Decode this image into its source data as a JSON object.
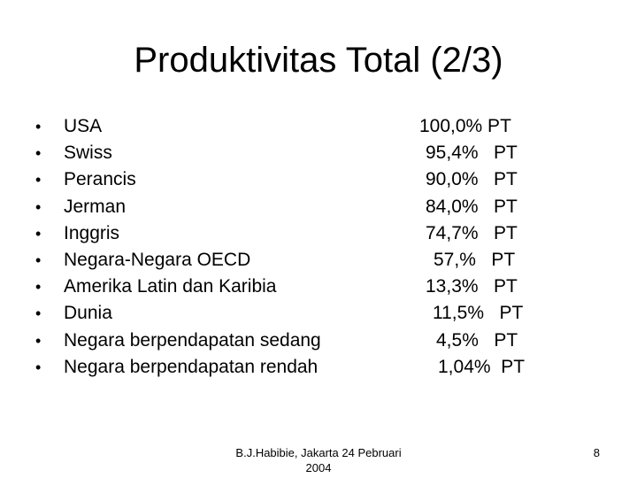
{
  "slide": {
    "title": "Produktivitas Total (2/3)",
    "bullet_char": "•",
    "items": [
      {
        "label": "USA",
        "value": "100,0% PT"
      },
      {
        "label": "Swiss",
        "value": "95,4%   PT"
      },
      {
        "label": "Perancis",
        "value": "90,0%   PT"
      },
      {
        "label": "Jerman",
        "value": "84,0%   PT"
      },
      {
        "label": "Inggris",
        "value": "74,7%   PT"
      },
      {
        "label": "Negara-Negara OECD",
        "value": "57,%   PT"
      },
      {
        "label": "Amerika Latin dan Karibia",
        "value": "13,3%   PT"
      },
      {
        "label": "Dunia",
        "value": "11,5%   PT"
      },
      {
        "label": "Negara berpendapatan sedang",
        "value": "4,5%   PT"
      },
      {
        "label": "Negara berpendapatan rendah",
        "value": "1,04%  PT"
      }
    ],
    "footer_left_line1": "B.J.Habibie, Jakarta 24 Pebruari",
    "footer_left_line2": "2004",
    "page_number": "8"
  }
}
